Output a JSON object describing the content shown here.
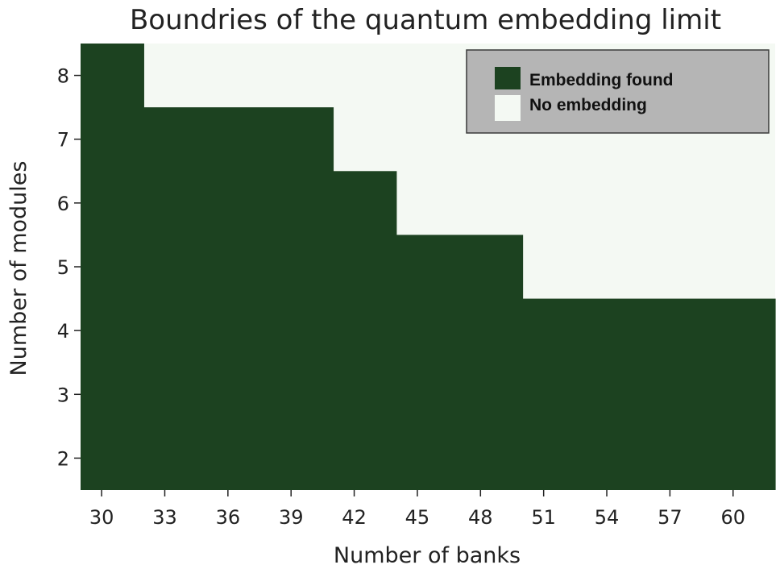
{
  "chart_data": {
    "type": "heatmap",
    "title": "Boundries of the quantum embedding limit",
    "xlabel": "Number of banks",
    "ylabel": "Number of modules",
    "x_range": [
      29,
      62
    ],
    "y_range": [
      1.5,
      8.5
    ],
    "x_ticks": [
      30,
      33,
      36,
      39,
      42,
      45,
      48,
      51,
      54,
      57,
      60
    ],
    "y_ticks": [
      2,
      3,
      4,
      5,
      6,
      7,
      8
    ],
    "legend_position": "top-right",
    "colors": {
      "embedding_found": "#1c4220",
      "no_embedding": "#f4f9f3"
    },
    "legend": [
      {
        "label": "Embedding found",
        "color": "#1c4220"
      },
      {
        "label": "No embedding",
        "color": "#f4f9f3"
      }
    ],
    "max_modules_with_embedding": [
      {
        "banks_from": 29,
        "banks_to": 32,
        "modules": 8
      },
      {
        "banks_from": 32,
        "banks_to": 41,
        "modules": 7
      },
      {
        "banks_from": 41,
        "banks_to": 44,
        "modules": 6
      },
      {
        "banks_from": 44,
        "banks_to": 50,
        "modules": 5
      },
      {
        "banks_from": 50,
        "banks_to": 62,
        "modules": 4
      }
    ]
  }
}
